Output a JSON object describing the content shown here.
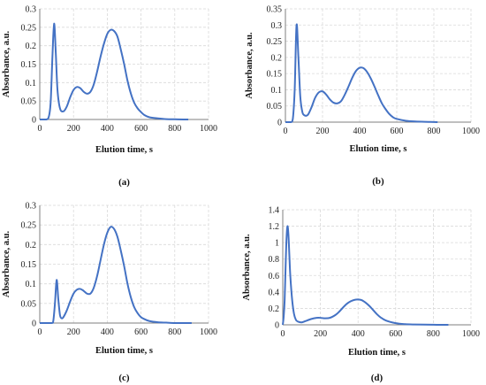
{
  "chart_data": [
    {
      "type": "line",
      "panel_label": "(a)",
      "xlabel": "Elution time, s",
      "ylabel": "Absorbance, a.u.",
      "xlim": [
        0,
        1000
      ],
      "ylim": [
        0,
        0.3
      ],
      "xticks": [
        0,
        200,
        400,
        600,
        800,
        1000
      ],
      "yticks": [
        0,
        0.05,
        0.1,
        0.15,
        0.2,
        0.25,
        0.3
      ],
      "grid": true,
      "color": "#4472c4",
      "series": [
        {
          "x": [
            0,
            40,
            55,
            65,
            75,
            85,
            95,
            105,
            120,
            140,
            160,
            180,
            200,
            220,
            240,
            260,
            280,
            300,
            320,
            340,
            360,
            380,
            400,
            420,
            440,
            460,
            480,
            500,
            520,
            540,
            560,
            580,
            600,
            620,
            650,
            700,
            750,
            800,
            850,
            880
          ],
          "y": [
            0,
            0,
            0.01,
            0.05,
            0.17,
            0.26,
            0.18,
            0.08,
            0.03,
            0.022,
            0.035,
            0.06,
            0.08,
            0.088,
            0.085,
            0.075,
            0.07,
            0.075,
            0.095,
            0.13,
            0.17,
            0.205,
            0.232,
            0.243,
            0.24,
            0.225,
            0.19,
            0.15,
            0.105,
            0.07,
            0.045,
            0.03,
            0.02,
            0.012,
            0.006,
            0.003,
            0.001,
            0.0005,
            0,
            0
          ]
        }
      ]
    },
    {
      "type": "line",
      "panel_label": "(b)",
      "xlabel": "Elution time, s",
      "ylabel": "Absorbance, a.u.",
      "xlim": [
        0,
        1000
      ],
      "ylim": [
        0,
        0.35
      ],
      "xticks": [
        0,
        200,
        400,
        600,
        800,
        1000
      ],
      "yticks": [
        0,
        0.05,
        0.1,
        0.15,
        0.2,
        0.25,
        0.3,
        0.35
      ],
      "grid": true,
      "color": "#4472c4",
      "series": [
        {
          "x": [
            0,
            30,
            40,
            50,
            60,
            70,
            80,
            90,
            100,
            120,
            140,
            160,
            180,
            200,
            220,
            240,
            260,
            280,
            300,
            320,
            340,
            360,
            380,
            400,
            420,
            440,
            460,
            480,
            500,
            520,
            540,
            560,
            580,
            600,
            650,
            700,
            750,
            800,
            820
          ],
          "y": [
            0,
            0,
            0.01,
            0.1,
            0.3,
            0.2,
            0.08,
            0.035,
            0.022,
            0.022,
            0.045,
            0.075,
            0.092,
            0.095,
            0.085,
            0.07,
            0.06,
            0.058,
            0.065,
            0.085,
            0.11,
            0.137,
            0.158,
            0.168,
            0.167,
            0.155,
            0.135,
            0.11,
            0.083,
            0.058,
            0.04,
            0.025,
            0.015,
            0.01,
            0.004,
            0.002,
            0.001,
            0.0005,
            0
          ]
        }
      ]
    },
    {
      "type": "line",
      "panel_label": "(c)",
      "xlabel": "Elution time, s",
      "ylabel": "Absorbance, a.u.",
      "xlim": [
        0,
        1000
      ],
      "ylim": [
        0,
        0.3
      ],
      "xticks": [
        0,
        200,
        400,
        600,
        800,
        1000
      ],
      "yticks": [
        0,
        0.05,
        0.1,
        0.15,
        0.2,
        0.25,
        0.3
      ],
      "grid": true,
      "color": "#4472c4",
      "series": [
        {
          "x": [
            0,
            70,
            80,
            90,
            100,
            110,
            120,
            130,
            140,
            160,
            180,
            200,
            220,
            240,
            260,
            280,
            300,
            320,
            340,
            360,
            380,
            400,
            420,
            440,
            460,
            480,
            500,
            520,
            540,
            560,
            580,
            600,
            620,
            650,
            700,
            750,
            800,
            850,
            900
          ],
          "y": [
            0,
            0,
            0.005,
            0.05,
            0.11,
            0.06,
            0.02,
            0.012,
            0.015,
            0.032,
            0.055,
            0.075,
            0.085,
            0.087,
            0.082,
            0.075,
            0.075,
            0.09,
            0.12,
            0.16,
            0.2,
            0.23,
            0.245,
            0.24,
            0.22,
            0.185,
            0.145,
            0.1,
            0.065,
            0.04,
            0.025,
            0.015,
            0.01,
            0.005,
            0.002,
            0.001,
            0,
            0,
            0
          ]
        }
      ]
    },
    {
      "type": "line",
      "panel_label": "(d)",
      "xlabel": "Elution time, s",
      "ylabel": "Absorbance, a.u.",
      "xlim": [
        0,
        1000
      ],
      "ylim": [
        0,
        1.4
      ],
      "xticks": [
        0,
        200,
        400,
        600,
        800,
        1000
      ],
      "yticks": [
        0,
        0.2,
        0.4,
        0.6,
        0.8,
        1,
        1.2,
        1.4
      ],
      "grid": true,
      "color": "#4472c4",
      "series": [
        {
          "x": [
            0,
            5,
            10,
            15,
            20,
            25,
            30,
            35,
            40,
            50,
            60,
            70,
            80,
            100,
            120,
            150,
            180,
            200,
            220,
            250,
            280,
            300,
            320,
            340,
            360,
            380,
            400,
            420,
            440,
            460,
            480,
            500,
            520,
            550,
            600,
            650,
            700,
            750,
            800,
            850,
            880
          ],
          "y": [
            0,
            0.1,
            0.3,
            0.7,
            1.05,
            1.2,
            1.1,
            0.85,
            0.6,
            0.3,
            0.13,
            0.06,
            0.04,
            0.03,
            0.045,
            0.07,
            0.085,
            0.085,
            0.08,
            0.085,
            0.12,
            0.16,
            0.21,
            0.255,
            0.285,
            0.303,
            0.308,
            0.3,
            0.27,
            0.23,
            0.18,
            0.13,
            0.09,
            0.05,
            0.02,
            0.008,
            0.004,
            0.002,
            0.001,
            0,
            0
          ]
        }
      ]
    }
  ]
}
